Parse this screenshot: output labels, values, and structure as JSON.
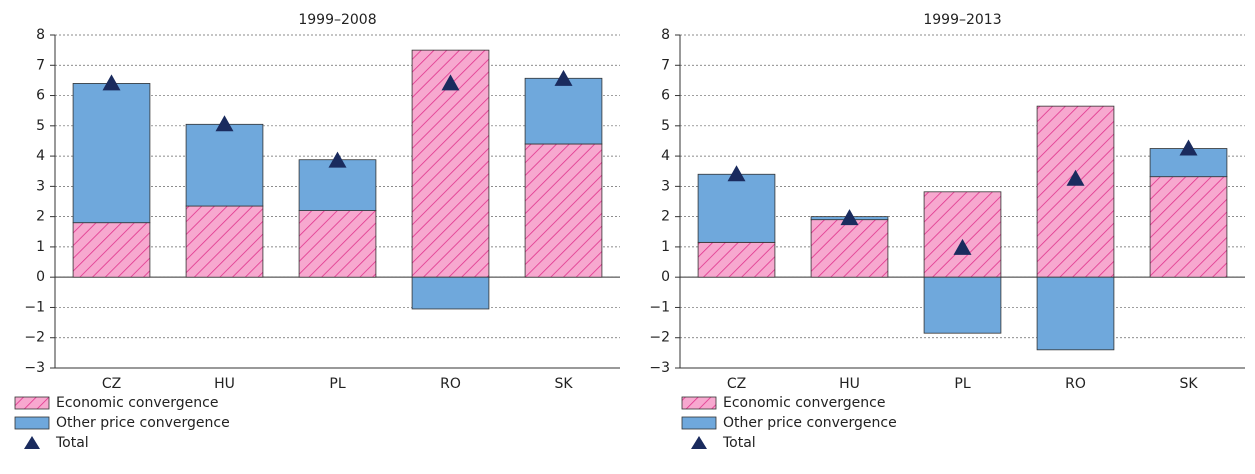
{
  "chart_data": [
    {
      "type": "bar",
      "title": "1999–2008",
      "stacked": true,
      "categories": [
        "CZ",
        "HU",
        "PL",
        "RO",
        "SK"
      ],
      "series": [
        {
          "name": "Economic convergence",
          "color": "#f7a8cf",
          "hatch": "#e0338c",
          "values": [
            1.8,
            2.35,
            2.2,
            7.5,
            4.4
          ]
        },
        {
          "name": "Other price convergence",
          "color": "#6fa8dc",
          "values": [
            4.6,
            2.7,
            1.68,
            -1.05,
            2.17
          ]
        },
        {
          "name": "Total",
          "color": "#1a2b5e",
          "marker": "triangle",
          "values": [
            6.4,
            5.05,
            3.85,
            6.4,
            6.55
          ]
        }
      ],
      "ylim": [
        -3,
        8
      ],
      "yticks": [
        {
          "value": -3,
          "label": "−3"
        },
        {
          "value": -2,
          "label": "−2"
        },
        {
          "value": -1,
          "label": "−1"
        },
        0,
        1,
        2,
        3,
        4,
        5,
        6,
        7,
        8
      ],
      "grid": true
    },
    {
      "type": "bar",
      "title": "1999–2013",
      "stacked": true,
      "categories": [
        "CZ",
        "HU",
        "PL",
        "RO",
        "SK"
      ],
      "series": [
        {
          "name": "Economic convergence",
          "color": "#f7a8cf",
          "hatch": "#e0338c",
          "values": [
            1.15,
            1.9,
            2.82,
            5.65,
            3.32
          ]
        },
        {
          "name": "Other price convergence",
          "color": "#6fa8dc",
          "values": [
            2.25,
            0.1,
            -1.85,
            -2.4,
            0.93
          ]
        },
        {
          "name": "Total",
          "color": "#1a2b5e",
          "marker": "triangle",
          "values": [
            3.4,
            1.95,
            0.97,
            3.25,
            4.25
          ]
        }
      ],
      "ylim": [
        -3,
        8
      ],
      "yticks": [
        {
          "value": -3,
          "label": "−3"
        },
        {
          "value": -2,
          "label": "−2"
        },
        {
          "value": -1,
          "label": "−1"
        },
        0,
        1,
        2,
        3,
        4,
        5,
        6,
        7,
        8
      ],
      "grid": true
    }
  ]
}
